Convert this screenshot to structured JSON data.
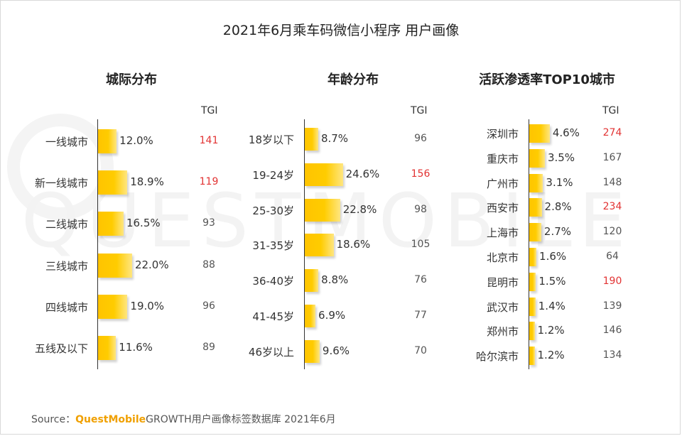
{
  "title": "2021年6月乘车码微信小程序 用户画像",
  "watermark": "QUESTMOBILE",
  "source": {
    "prefix": "Source：",
    "brand": "QuestMobile",
    "text": "GROWTH用户画像标签数据库 2021年6月"
  },
  "colors": {
    "bar": "#ffcc00",
    "highlight": "#e23333"
  },
  "chart_data": [
    {
      "type": "bar",
      "orientation": "horizontal",
      "title": "城际分布",
      "tgi_label": "TGI",
      "categories": [
        "一线城市",
        "新一线城市",
        "二线城市",
        "三线城市",
        "四线城市",
        "五线及以下"
      ],
      "values": [
        12.0,
        18.9,
        16.5,
        22.0,
        19.0,
        11.6
      ],
      "value_labels": [
        "12.0%",
        "18.9%",
        "16.5%",
        "22.0%",
        "19.0%",
        "11.6%"
      ],
      "tgi": [
        141,
        119,
        93,
        88,
        96,
        89
      ],
      "tgi_highlight": [
        true,
        true,
        false,
        false,
        false,
        false
      ],
      "xlim": [
        0,
        30
      ]
    },
    {
      "type": "bar",
      "orientation": "horizontal",
      "title": "年龄分布",
      "tgi_label": "TGI",
      "categories": [
        "18岁以下",
        "19-24岁",
        "25-30岁",
        "31-35岁",
        "36-40岁",
        "41-45岁",
        "46岁以上"
      ],
      "values": [
        8.7,
        24.6,
        22.8,
        18.6,
        8.8,
        6.9,
        9.6
      ],
      "value_labels": [
        "8.7%",
        "24.6%",
        "22.8%",
        "18.6%",
        "8.8%",
        "6.9%",
        "9.6%"
      ],
      "tgi": [
        96,
        156,
        98,
        105,
        76,
        77,
        70
      ],
      "tgi_highlight": [
        false,
        true,
        false,
        false,
        false,
        false,
        false
      ],
      "xlim": [
        0,
        30
      ]
    },
    {
      "type": "bar",
      "orientation": "horizontal",
      "title": "活跃渗透率TOP10城市",
      "tgi_label": "TGI",
      "categories": [
        "深圳市",
        "重庆市",
        "广州市",
        "西安市",
        "上海市",
        "北京市",
        "昆明市",
        "武汉市",
        "郑州市",
        "哈尔滨市"
      ],
      "values": [
        4.6,
        3.5,
        3.1,
        2.8,
        2.7,
        1.6,
        1.5,
        1.4,
        1.2,
        1.2
      ],
      "value_labels": [
        "4.6%",
        "3.5%",
        "3.1%",
        "2.8%",
        "2.7%",
        "1.6%",
        "1.5%",
        "1.4%",
        "1.2%",
        "1.2%"
      ],
      "tgi": [
        274,
        167,
        148,
        234,
        120,
        64,
        190,
        139,
        146,
        134
      ],
      "tgi_highlight": [
        true,
        false,
        false,
        true,
        false,
        false,
        true,
        false,
        false,
        false
      ],
      "xlim": [
        0,
        30
      ]
    }
  ]
}
